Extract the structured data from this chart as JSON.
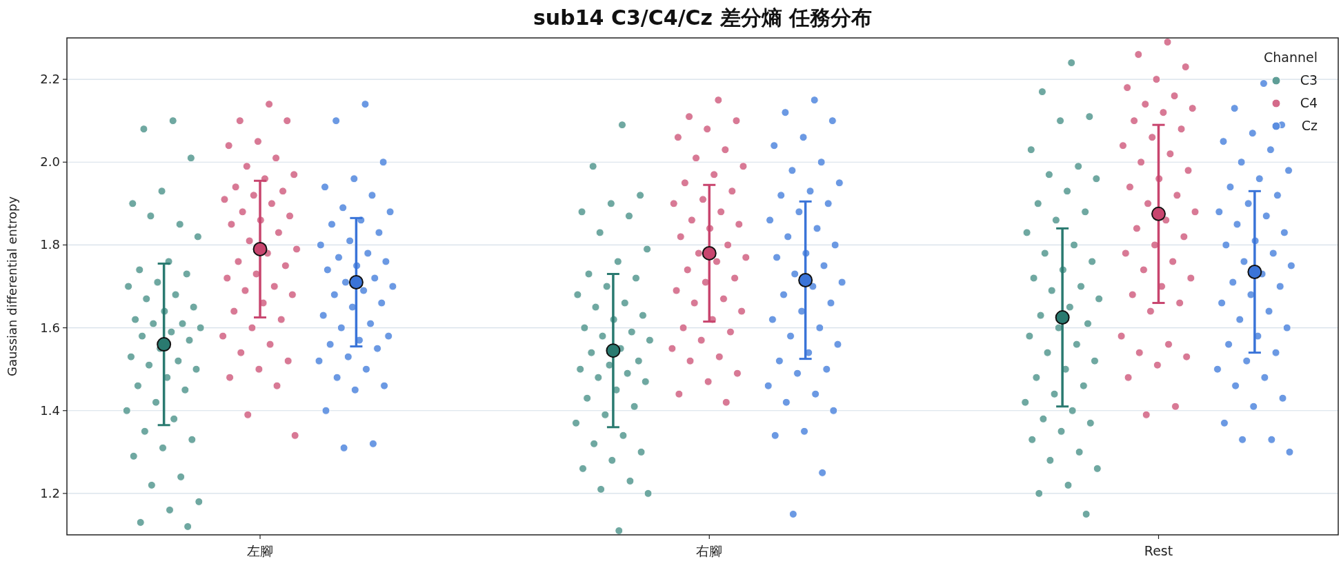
{
  "chart_data": {
    "type": "scatter",
    "title": "sub14 C3/C4/Cz 差分熵 任務分布",
    "ylabel": "Gaussian differential entropy",
    "legend_title": "Channel",
    "categories": [
      "左腳",
      "右腳",
      "Rest"
    ],
    "ylim": [
      1.1,
      2.3
    ],
    "yticks": [
      1.2,
      1.4,
      1.6,
      1.8,
      {
        "value": 2.0,
        "label": "2.0"
      },
      2.2
    ],
    "grid": "y",
    "legend": "top right",
    "marker": "circle",
    "series": [
      {
        "name": "C3",
        "color": "#5f9e97",
        "x": [
          "左腳",
          "左腳",
          "左腳",
          "左腳",
          "左腳",
          "左腳",
          "左腳",
          "左腳",
          "左腳",
          "左腳",
          "左腳",
          "左腳",
          "左腳",
          "左腳",
          "左腳",
          "左腳",
          "左腳",
          "左腳",
          "左腳",
          "左腳",
          "左腳",
          "左腳",
          "左腳",
          "左腳",
          "左腳",
          "左腳",
          "左腳",
          "左腳",
          "左腳",
          "左腳",
          "左腳",
          "左腳",
          "左腳",
          "左腳",
          "左腳",
          "左腳",
          "左腳",
          "左腳",
          "左腳",
          "左腳",
          "左腳",
          "左腳",
          "左腳",
          "左腳",
          "左腳",
          "右腳",
          "右腳",
          "右腳",
          "右腳",
          "右腳",
          "右腳",
          "右腳",
          "右腳",
          "右腳",
          "右腳",
          "右腳",
          "右腳",
          "右腳",
          "右腳",
          "右腳",
          "右腳",
          "右腳",
          "右腳",
          "右腳",
          "右腳",
          "右腳",
          "右腳",
          "右腳",
          "右腳",
          "右腳",
          "右腳",
          "右腳",
          "右腳",
          "右腳",
          "右腳",
          "右腳",
          "右腳",
          "右腳",
          "右腳",
          "右腳",
          "右腳",
          "右腳",
          "右腳",
          "右腳",
          "右腳",
          "右腳",
          "右腳",
          "右腳",
          "Rest",
          "Rest",
          "Rest",
          "Rest",
          "Rest",
          "Rest",
          "Rest",
          "Rest",
          "Rest",
          "Rest",
          "Rest",
          "Rest",
          "Rest",
          "Rest",
          "Rest",
          "Rest",
          "Rest",
          "Rest",
          "Rest",
          "Rest",
          "Rest",
          "Rest",
          "Rest",
          "Rest",
          "Rest",
          "Rest",
          "Rest",
          "Rest",
          "Rest",
          "Rest",
          "Rest",
          "Rest",
          "Rest",
          "Rest",
          "Rest",
          "Rest",
          "Rest",
          "Rest",
          "Rest",
          "Rest",
          "Rest",
          "Rest",
          "Rest",
          "Rest",
          "Rest"
        ],
        "values": [
          2.1,
          2.08,
          2.01,
          1.93,
          1.9,
          1.85,
          1.87,
          1.82,
          1.76,
          1.74,
          1.73,
          1.71,
          1.7,
          1.68,
          1.67,
          1.65,
          1.64,
          1.62,
          1.61,
          1.61,
          1.6,
          1.59,
          1.58,
          1.57,
          1.55,
          1.53,
          1.52,
          1.51,
          1.5,
          1.48,
          1.46,
          1.45,
          1.42,
          1.4,
          1.38,
          1.35,
          1.33,
          1.31,
          1.29,
          1.24,
          1.22,
          1.18,
          1.16,
          1.13,
          1.12,
          2.09,
          1.99,
          1.92,
          1.9,
          1.88,
          1.87,
          1.83,
          1.79,
          1.76,
          1.73,
          1.72,
          1.7,
          1.68,
          1.66,
          1.65,
          1.63,
          1.62,
          1.6,
          1.59,
          1.58,
          1.57,
          1.55,
          1.54,
          1.52,
          1.51,
          1.5,
          1.49,
          1.48,
          1.47,
          1.45,
          1.43,
          1.41,
          1.39,
          1.37,
          1.34,
          1.32,
          1.3,
          1.28,
          1.26,
          1.23,
          1.21,
          1.2,
          1.11,
          2.24,
          2.17,
          2.11,
          2.1,
          2.03,
          1.99,
          1.97,
          1.96,
          1.93,
          1.9,
          1.88,
          1.86,
          1.83,
          1.8,
          1.78,
          1.76,
          1.74,
          1.72,
          1.7,
          1.69,
          1.67,
          1.65,
          1.63,
          1.61,
          1.6,
          1.58,
          1.56,
          1.54,
          1.52,
          1.5,
          1.48,
          1.46,
          1.44,
          1.42,
          1.4,
          1.38,
          1.37,
          1.35,
          1.33,
          1.3,
          1.28,
          1.26,
          1.22,
          1.2,
          1.15
        ]
      },
      {
        "name": "C4",
        "color": "#d46a8a",
        "x": [
          "左腳",
          "左腳",
          "左腳",
          "左腳",
          "左腳",
          "左腳",
          "左腳",
          "左腳",
          "左腳",
          "左腳",
          "左腳",
          "左腳",
          "左腳",
          "左腳",
          "左腳",
          "左腳",
          "左腳",
          "左腳",
          "左腳",
          "左腳",
          "左腳",
          "左腳",
          "左腳",
          "左腳",
          "左腳",
          "左腳",
          "左腳",
          "左腳",
          "左腳",
          "左腳",
          "左腳",
          "左腳",
          "左腳",
          "左腳",
          "左腳",
          "左腳",
          "左腳",
          "左腳",
          "左腳",
          "左腳",
          "左腳",
          "左腳",
          "右腳",
          "右腳",
          "右腳",
          "右腳",
          "右腳",
          "右腳",
          "右腳",
          "右腳",
          "右腳",
          "右腳",
          "右腳",
          "右腳",
          "右腳",
          "右腳",
          "右腳",
          "右腳",
          "右腳",
          "右腳",
          "右腳",
          "右腳",
          "右腳",
          "右腳",
          "右腳",
          "右腳",
          "右腳",
          "右腳",
          "右腳",
          "右腳",
          "右腳",
          "右腳",
          "右腳",
          "右腳",
          "右腳",
          "右腳",
          "右腳",
          "右腳",
          "右腳",
          "右腳",
          "右腳",
          "右腳",
          "Rest",
          "Rest",
          "Rest",
          "Rest",
          "Rest",
          "Rest",
          "Rest",
          "Rest",
          "Rest",
          "Rest",
          "Rest",
          "Rest",
          "Rest",
          "Rest",
          "Rest",
          "Rest",
          "Rest",
          "Rest",
          "Rest",
          "Rest",
          "Rest",
          "Rest",
          "Rest",
          "Rest",
          "Rest",
          "Rest",
          "Rest",
          "Rest",
          "Rest",
          "Rest",
          "Rest",
          "Rest",
          "Rest",
          "Rest",
          "Rest",
          "Rest",
          "Rest",
          "Rest",
          "Rest",
          "Rest",
          "Rest"
        ],
        "values": [
          2.14,
          2.1,
          2.1,
          2.05,
          2.04,
          2.01,
          1.99,
          1.97,
          1.96,
          1.94,
          1.93,
          1.92,
          1.91,
          1.9,
          1.88,
          1.87,
          1.86,
          1.85,
          1.83,
          1.81,
          1.79,
          1.78,
          1.76,
          1.75,
          1.73,
          1.72,
          1.7,
          1.69,
          1.68,
          1.66,
          1.64,
          1.62,
          1.6,
          1.58,
          1.56,
          1.54,
          1.52,
          1.5,
          1.48,
          1.46,
          1.39,
          1.34,
          2.15,
          2.11,
          2.1,
          2.08,
          2.06,
          2.03,
          2.01,
          1.99,
          1.97,
          1.95,
          1.93,
          1.91,
          1.9,
          1.88,
          1.86,
          1.85,
          1.84,
          1.82,
          1.8,
          1.78,
          1.77,
          1.76,
          1.74,
          1.72,
          1.71,
          1.69,
          1.67,
          1.66,
          1.64,
          1.62,
          1.6,
          1.59,
          1.57,
          1.55,
          1.53,
          1.52,
          1.49,
          1.47,
          1.44,
          1.42,
          2.29,
          2.26,
          2.23,
          2.2,
          2.18,
          2.16,
          2.14,
          2.13,
          2.12,
          2.1,
          2.08,
          2.06,
          2.04,
          2.02,
          2.0,
          1.98,
          1.96,
          1.94,
          1.92,
          1.9,
          1.88,
          1.86,
          1.84,
          1.82,
          1.8,
          1.78,
          1.76,
          1.74,
          1.72,
          1.7,
          1.68,
          1.66,
          1.64,
          1.58,
          1.56,
          1.54,
          1.53,
          1.51,
          1.48,
          1.41,
          1.39
        ]
      },
      {
        "name": "Cz",
        "color": "#5b8ee0",
        "x": [
          "左腳",
          "左腳",
          "左腳",
          "左腳",
          "左腳",
          "左腳",
          "左腳",
          "左腳",
          "左腳",
          "左腳",
          "左腳",
          "左腳",
          "左腳",
          "左腳",
          "左腳",
          "左腳",
          "左腳",
          "左腳",
          "左腳",
          "左腳",
          "左腳",
          "左腳",
          "左腳",
          "左腳",
          "左腳",
          "左腳",
          "左腳",
          "左腳",
          "左腳",
          "左腳",
          "左腳",
          "左腳",
          "左腳",
          "左腳",
          "左腳",
          "左腳",
          "左腳",
          "左腳",
          "左腳",
          "左腳",
          "左腳",
          "右腳",
          "右腳",
          "右腳",
          "右腳",
          "右腳",
          "右腳",
          "右腳",
          "右腳",
          "右腳",
          "右腳",
          "右腳",
          "右腳",
          "右腳",
          "右腳",
          "右腳",
          "右腳",
          "右腳",
          "右腳",
          "右腳",
          "右腳",
          "右腳",
          "右腳",
          "右腳",
          "右腳",
          "右腳",
          "右腳",
          "右腳",
          "右腳",
          "右腳",
          "右腳",
          "右腳",
          "右腳",
          "右腳",
          "右腳",
          "右腳",
          "右腳",
          "右腳",
          "右腳",
          "右腳",
          "右腳",
          "右腳",
          "Rest",
          "Rest",
          "Rest",
          "Rest",
          "Rest",
          "Rest",
          "Rest",
          "Rest",
          "Rest",
          "Rest",
          "Rest",
          "Rest",
          "Rest",
          "Rest",
          "Rest",
          "Rest",
          "Rest",
          "Rest",
          "Rest",
          "Rest",
          "Rest",
          "Rest",
          "Rest",
          "Rest",
          "Rest",
          "Rest",
          "Rest",
          "Rest",
          "Rest",
          "Rest",
          "Rest",
          "Rest",
          "Rest",
          "Rest",
          "Rest",
          "Rest",
          "Rest",
          "Rest",
          "Rest",
          "Rest",
          "Rest",
          "Rest"
        ],
        "values": [
          2.14,
          2.1,
          2.0,
          1.96,
          1.94,
          1.92,
          1.89,
          1.88,
          1.86,
          1.85,
          1.83,
          1.81,
          1.8,
          1.78,
          1.77,
          1.76,
          1.75,
          1.74,
          1.72,
          1.71,
          1.7,
          1.69,
          1.68,
          1.66,
          1.65,
          1.63,
          1.61,
          1.6,
          1.58,
          1.57,
          1.56,
          1.55,
          1.53,
          1.52,
          1.5,
          1.48,
          1.46,
          1.45,
          1.4,
          1.32,
          1.31,
          2.15,
          2.12,
          2.1,
          2.06,
          2.04,
          2.0,
          1.98,
          1.95,
          1.93,
          1.92,
          1.9,
          1.88,
          1.86,
          1.84,
          1.82,
          1.8,
          1.78,
          1.77,
          1.75,
          1.73,
          1.71,
          1.7,
          1.68,
          1.66,
          1.64,
          1.62,
          1.6,
          1.58,
          1.56,
          1.54,
          1.52,
          1.5,
          1.49,
          1.46,
          1.44,
          1.42,
          1.4,
          1.35,
          1.34,
          1.25,
          1.15,
          2.19,
          2.13,
          2.09,
          2.07,
          2.05,
          2.03,
          2.0,
          1.98,
          1.96,
          1.94,
          1.92,
          1.9,
          1.88,
          1.87,
          1.85,
          1.83,
          1.81,
          1.8,
          1.78,
          1.76,
          1.75,
          1.73,
          1.71,
          1.7,
          1.68,
          1.66,
          1.64,
          1.62,
          1.6,
          1.58,
          1.56,
          1.54,
          1.52,
          1.5,
          1.48,
          1.46,
          1.43,
          1.41,
          1.37,
          1.33,
          1.33,
          1.3
        ]
      },
      {
        "color": "#2a7a70",
        "x": [
          "左腳",
          "右腳",
          "Rest"
        ],
        "values": [
          1.56,
          1.545,
          1.625
        ],
        "errors": [
          0.195,
          0.185,
          0.215
        ]
      },
      {
        "color": "#c8456e",
        "x": [
          "左腳",
          "右腳",
          "Rest"
        ],
        "values": [
          1.79,
          1.78,
          1.875
        ],
        "errors": [
          0.165,
          0.165,
          0.215
        ]
      },
      {
        "color": "#3a74d8",
        "x": [
          "左腳",
          "右腳",
          "Rest"
        ],
        "values": [
          1.71,
          1.715,
          1.735
        ],
        "errors": [
          0.155,
          0.19,
          0.195
        ]
      }
    ]
  }
}
